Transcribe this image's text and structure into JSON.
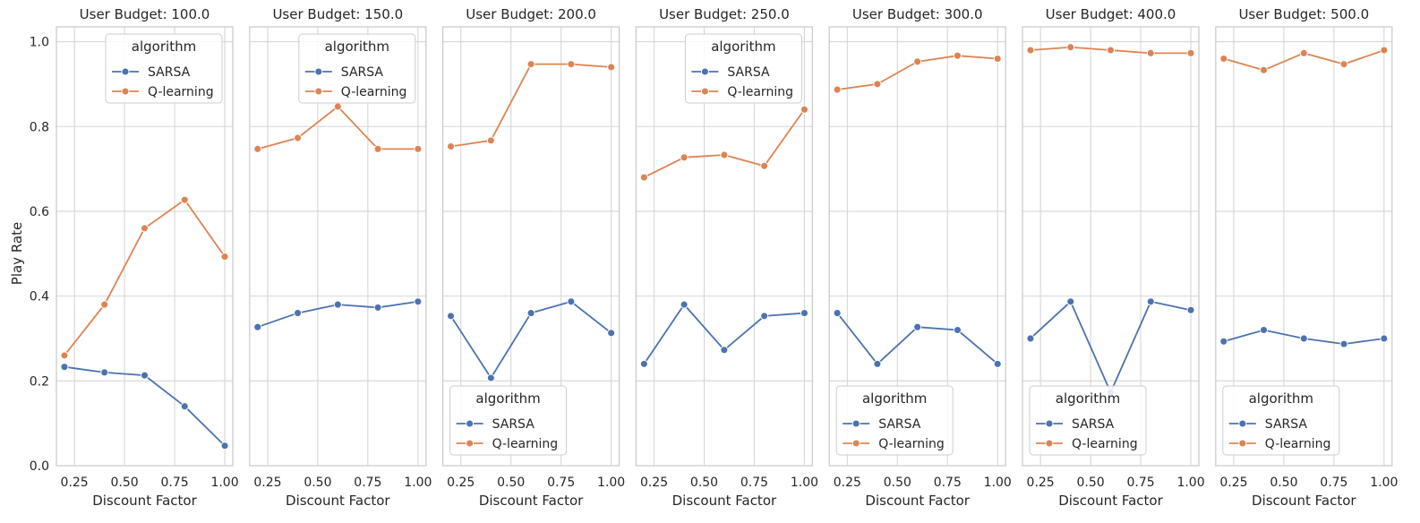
{
  "figure": {
    "ylabel": "Play Rate",
    "xlabel": "Discount Factor",
    "legend_title": "algorithm",
    "colors": {
      "SARSA": "#4c72b0",
      "Q-learning": "#dd8452",
      "grid": "#d6d6d6",
      "spine": "#cccccc"
    }
  },
  "chart_data": [
    {
      "type": "line",
      "title": "User Budget: 100.0",
      "xlabel": "Discount Factor",
      "ylabel": "Play Rate",
      "x": [
        0.2,
        0.4,
        0.6,
        0.8,
        1.0
      ],
      "xlim": [
        0.16,
        1.04
      ],
      "ylim": [
        0.0,
        1.035
      ],
      "xticks": [
        "0.25",
        "0.50",
        "0.75",
        "1.00"
      ],
      "yticks": [
        "0.0",
        "0.2",
        "0.4",
        "0.6",
        "0.8",
        "1.0"
      ],
      "grid": true,
      "legend": "top-right",
      "series": [
        {
          "name": "SARSA",
          "values": [
            0.233,
            0.22,
            0.213,
            0.14,
            0.047
          ]
        },
        {
          "name": "Q-learning",
          "values": [
            0.26,
            0.38,
            0.56,
            0.627,
            0.493
          ]
        }
      ]
    },
    {
      "type": "line",
      "title": "User Budget: 150.0",
      "xlabel": "Discount Factor",
      "x": [
        0.2,
        0.4,
        0.6,
        0.8,
        1.0
      ],
      "xlim": [
        0.16,
        1.04
      ],
      "ylim": [
        0.0,
        1.035
      ],
      "xticks": [
        "0.25",
        "0.50",
        "0.75",
        "1.00"
      ],
      "grid": true,
      "legend": "top-right",
      "series": [
        {
          "name": "SARSA",
          "values": [
            0.327,
            0.36,
            0.38,
            0.373,
            0.387
          ]
        },
        {
          "name": "Q-learning",
          "values": [
            0.747,
            0.773,
            0.847,
            0.747,
            0.747
          ]
        }
      ]
    },
    {
      "type": "line",
      "title": "User Budget: 200.0",
      "xlabel": "Discount Factor",
      "x": [
        0.2,
        0.4,
        0.6,
        0.8,
        1.0
      ],
      "xlim": [
        0.16,
        1.04
      ],
      "ylim": [
        0.0,
        1.035
      ],
      "xticks": [
        "0.25",
        "0.50",
        "0.75",
        "1.00"
      ],
      "grid": true,
      "legend": "bottom-left",
      "series": [
        {
          "name": "SARSA",
          "values": [
            0.353,
            0.207,
            0.36,
            0.387,
            0.313
          ]
        },
        {
          "name": "Q-learning",
          "values": [
            0.753,
            0.767,
            0.947,
            0.947,
            0.94
          ]
        }
      ]
    },
    {
      "type": "line",
      "title": "User Budget: 250.0",
      "xlabel": "Discount Factor",
      "x": [
        0.2,
        0.4,
        0.6,
        0.8,
        1.0
      ],
      "xlim": [
        0.16,
        1.04
      ],
      "ylim": [
        0.0,
        1.035
      ],
      "xticks": [
        "0.25",
        "0.50",
        "0.75",
        "1.00"
      ],
      "grid": true,
      "legend": "top-right",
      "series": [
        {
          "name": "SARSA",
          "values": [
            0.24,
            0.38,
            0.273,
            0.353,
            0.36
          ]
        },
        {
          "name": "Q-learning",
          "values": [
            0.68,
            0.727,
            0.733,
            0.707,
            0.84
          ]
        }
      ]
    },
    {
      "type": "line",
      "title": "User Budget: 300.0",
      "xlabel": "Discount Factor",
      "x": [
        0.2,
        0.4,
        0.6,
        0.8,
        1.0
      ],
      "xlim": [
        0.16,
        1.04
      ],
      "ylim": [
        0.0,
        1.035
      ],
      "xticks": [
        "0.25",
        "0.50",
        "0.75",
        "1.00"
      ],
      "grid": true,
      "legend": "bottom-left",
      "series": [
        {
          "name": "SARSA",
          "values": [
            0.36,
            0.24,
            0.327,
            0.32,
            0.24
          ]
        },
        {
          "name": "Q-learning",
          "values": [
            0.887,
            0.9,
            0.953,
            0.967,
            0.96
          ]
        }
      ]
    },
    {
      "type": "line",
      "title": "User Budget: 400.0",
      "xlabel": "Discount Factor",
      "x": [
        0.2,
        0.4,
        0.6,
        0.8,
        1.0
      ],
      "xlim": [
        0.16,
        1.04
      ],
      "ylim": [
        0.0,
        1.035
      ],
      "xticks": [
        "0.25",
        "0.50",
        "0.75",
        "1.00"
      ],
      "grid": true,
      "legend": "bottom-left",
      "series": [
        {
          "name": "SARSA",
          "values": [
            0.3,
            0.387,
            0.173,
            0.387,
            0.367
          ]
        },
        {
          "name": "Q-learning",
          "values": [
            0.98,
            0.987,
            0.98,
            0.973,
            0.973
          ]
        }
      ]
    },
    {
      "type": "line",
      "title": "User Budget: 500.0",
      "xlabel": "Discount Factor",
      "x": [
        0.2,
        0.4,
        0.6,
        0.8,
        1.0
      ],
      "xlim": [
        0.16,
        1.04
      ],
      "ylim": [
        0.0,
        1.035
      ],
      "xticks": [
        "0.25",
        "0.50",
        "0.75",
        "1.00"
      ],
      "grid": true,
      "legend": "bottom-left",
      "series": [
        {
          "name": "SARSA",
          "values": [
            0.293,
            0.32,
            0.3,
            0.287,
            0.3
          ]
        },
        {
          "name": "Q-learning",
          "values": [
            0.96,
            0.933,
            0.973,
            0.947,
            0.98
          ]
        }
      ]
    }
  ]
}
